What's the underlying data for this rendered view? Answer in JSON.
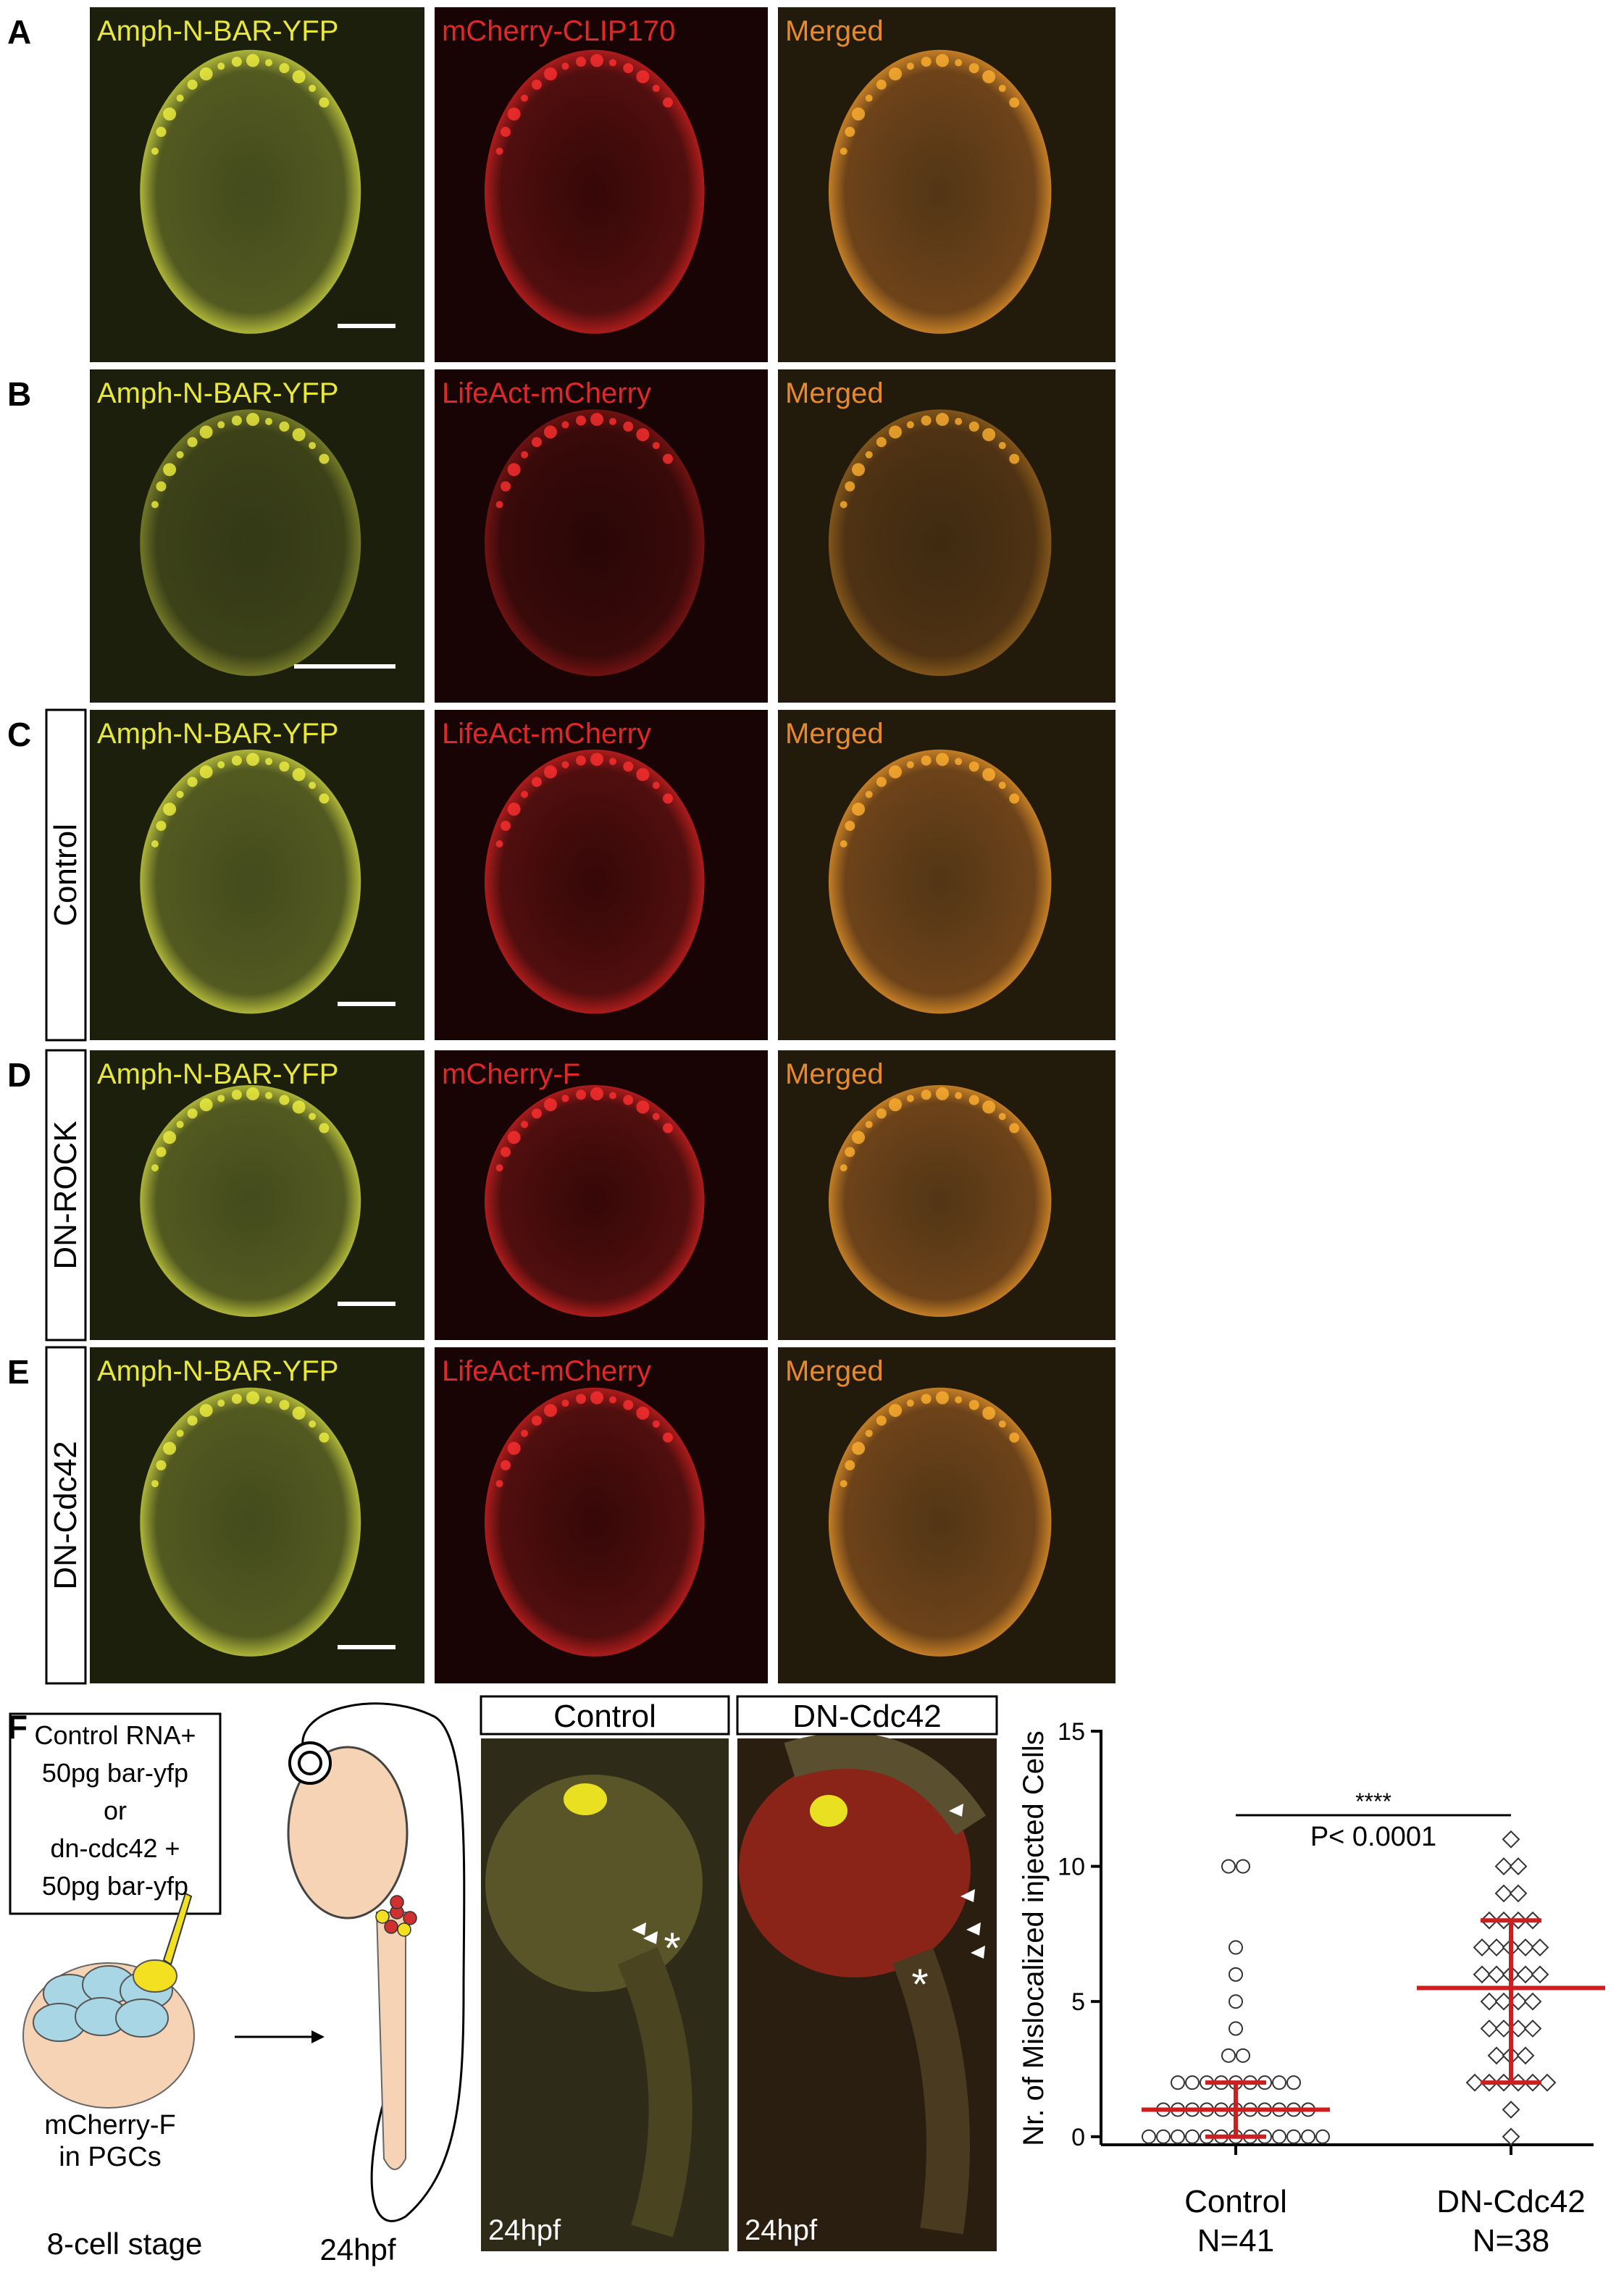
{
  "panels": [
    {
      "letter": "A",
      "labels": [
        "Amph-N-BAR-YFP",
        "mCherry-CLIP170",
        "Merged"
      ]
    },
    {
      "letter": "B",
      "labels": [
        "Amph-N-BAR-YFP",
        "LifeAct-mCherry",
        "Merged"
      ]
    },
    {
      "letter": "C",
      "side": "Control",
      "labels": [
        "Amph-N-BAR-YFP",
        "LifeAct-mCherry",
        "Merged"
      ]
    },
    {
      "letter": "D",
      "side": "DN-ROCK",
      "labels": [
        "Amph-N-BAR-YFP",
        "mCherry-F",
        "Merged"
      ]
    },
    {
      "letter": "E",
      "side": "DN-Cdc42",
      "labels": [
        "Amph-N-BAR-YFP",
        "LifeAct-mCherry",
        "Merged"
      ]
    }
  ],
  "panel_f": {
    "letter": "F",
    "injection": [
      "Control RNA+",
      "50pg bar-yfp",
      "or",
      "dn-cdc42 +",
      "50pg bar-yfp"
    ],
    "embryo_label": [
      "mCherry-F",
      "in PGCs"
    ],
    "stage_label": "8-cell stage",
    "fish_label": "24hpf",
    "image_headers": [
      "Control",
      "DN-Cdc42"
    ],
    "image_labels": [
      "24hpf",
      "24hpf"
    ],
    "asterisks": [
      "*",
      "*"
    ]
  },
  "chart_data": {
    "type": "scatter",
    "y_label": "Nr. of Mislocalized injected Cells",
    "categories": [
      "Control",
      "DN-Cdc42"
    ],
    "n_labels": [
      "N=41",
      "N=38"
    ],
    "significance": "****",
    "p_value": "P< 0.0001",
    "ylim": [
      -0.3,
      15
    ],
    "yticks": [
      0,
      5,
      10,
      15
    ],
    "summary_color": "#cc2020",
    "series": [
      {
        "name": "Control",
        "marker": "circle",
        "median": 1,
        "lower": 0,
        "upper": 2,
        "values": [
          0,
          0,
          0,
          0,
          0,
          0,
          0,
          0,
          0,
          0,
          0,
          0,
          0,
          1,
          1,
          1,
          1,
          1,
          1,
          1,
          1,
          1,
          1,
          1,
          2,
          2,
          2,
          2,
          2,
          2,
          2,
          2,
          2,
          3,
          3,
          4,
          5,
          6,
          7,
          10,
          10
        ]
      },
      {
        "name": "DN-Cdc42",
        "marker": "diamond",
        "median": 5.5,
        "lower": 2,
        "upper": 8,
        "values": [
          0,
          1,
          2,
          2,
          2,
          2,
          2,
          2,
          3,
          3,
          3,
          4,
          4,
          4,
          4,
          5,
          5,
          5,
          5,
          6,
          6,
          6,
          6,
          6,
          7,
          7,
          7,
          7,
          7,
          8,
          8,
          8,
          8,
          9,
          9,
          10,
          10,
          11
        ]
      }
    ]
  }
}
